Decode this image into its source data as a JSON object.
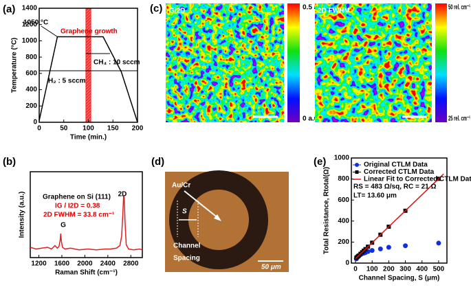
{
  "chart_data": [
    {
      "panel": "(a)",
      "type": "line",
      "x_label": "Time (min.)",
      "y_label": "Temperature (°C)",
      "x": [
        0,
        37,
        130,
        167,
        200
      ],
      "series": [
        {
          "color": "#000000",
          "values": [
            20,
            1050,
            1050,
            620,
            0
          ]
        }
      ],
      "xlim": [
        0,
        200
      ],
      "xticks": [
        0,
        50,
        100,
        150,
        200
      ],
      "ylim": [
        0,
        1400
      ],
      "yticks": [
        0,
        200,
        400,
        600,
        800,
        1000,
        1200,
        1400
      ],
      "growth_band": [
        95,
        105
      ],
      "band_color": "#ff2020",
      "annotations": [
        "1050 °C",
        "Graphene growth",
        "CH₄ : 10 sccm",
        "H₂ : 5 sccm"
      ]
    },
    {
      "panel": "(b)",
      "type": "line",
      "x_label": "Raman Shift (cm⁻¹)",
      "y_label": "Intensity (a.u.)",
      "x": [
        1050,
        1150,
        1250,
        1350,
        1420,
        1480,
        1520,
        1550,
        1570,
        1580,
        1590,
        1610,
        1650,
        1750,
        1900,
        2050,
        2200,
        2350,
        2450,
        2550,
        2610,
        2640,
        2660,
        2675,
        2685,
        2700,
        2720,
        2760,
        2850,
        2950,
        3000
      ],
      "series": [
        {
          "color": "#e02020",
          "values": [
            0.12,
            0.1,
            0.11,
            0.12,
            0.1,
            0.14,
            0.11,
            0.13,
            0.2,
            0.28,
            0.2,
            0.12,
            0.1,
            0.11,
            0.09,
            0.1,
            0.09,
            0.1,
            0.1,
            0.11,
            0.14,
            0.25,
            0.5,
            0.72,
            0.7,
            0.4,
            0.15,
            0.1,
            0.09,
            0.1,
            0.09
          ]
        }
      ],
      "xlim": [
        1050,
        3000
      ],
      "xticks": [
        1200,
        1600,
        2000,
        2400,
        2800
      ],
      "ylim": [
        0,
        1
      ],
      "annotations": [
        "Graphene on Si (111)",
        "IG / I2D = 0.38",
        "2D FWHM = 33.8 cm⁻¹",
        "G",
        "2D"
      ]
    },
    {
      "panel": "(e)",
      "type": "scatter",
      "x_label": "Channel Spacing, S (μm)",
      "y_label": "Total Resistance, Rtotal(Ω)",
      "x": [
        5,
        10,
        15,
        20,
        30,
        40,
        50,
        60,
        75,
        100,
        150,
        200,
        300,
        500
      ],
      "series": [
        {
          "name": "Original CTLM Data",
          "color": "#1030e0",
          "marker": "circle",
          "values": [
            40,
            55,
            60,
            70,
            80,
            90,
            95,
            100,
            110,
            120,
            135,
            150,
            165,
            190
          ]
        },
        {
          "name": "Corrected CTLM Data",
          "color": "#000000",
          "marker": "square",
          "values": [
            50,
            57,
            65,
            72,
            88,
            103,
            118,
            133,
            156,
            194,
            270,
            346,
            498,
            802
          ]
        },
        {
          "name": "Linear Fit to Corrected CTLM Data",
          "color": "#e01010",
          "type": "line",
          "x": [
            0,
            530
          ],
          "values": [
            42,
            848
          ]
        }
      ],
      "xlim": [
        -25,
        550
      ],
      "xticks": [
        0,
        100,
        200,
        300,
        400,
        500
      ],
      "ylim": [
        0,
        1000
      ],
      "yticks": [
        0,
        200,
        400,
        600,
        800,
        1000
      ],
      "annotations": [
        "RS = 483 Ω/sq, RC = 21 Ω",
        "LT= 13.60 μm"
      ]
    }
  ],
  "maps": {
    "panel": "(c)",
    "left": {
      "title": "G/2D",
      "max_label": "0.5 a.u.",
      "min_label": "0 a.u."
    },
    "right": {
      "title": "2D FWHM",
      "max_label": "50 rel. cm⁻¹",
      "min_label": "25 rel. cm⁻¹"
    }
  },
  "micrograph": {
    "panel": "(d)",
    "electrode": "Au/Cr",
    "spacing_symbol": "S",
    "spacing_label": [
      "Channel",
      "Spacing"
    ],
    "scale_bar": "50 μm"
  }
}
